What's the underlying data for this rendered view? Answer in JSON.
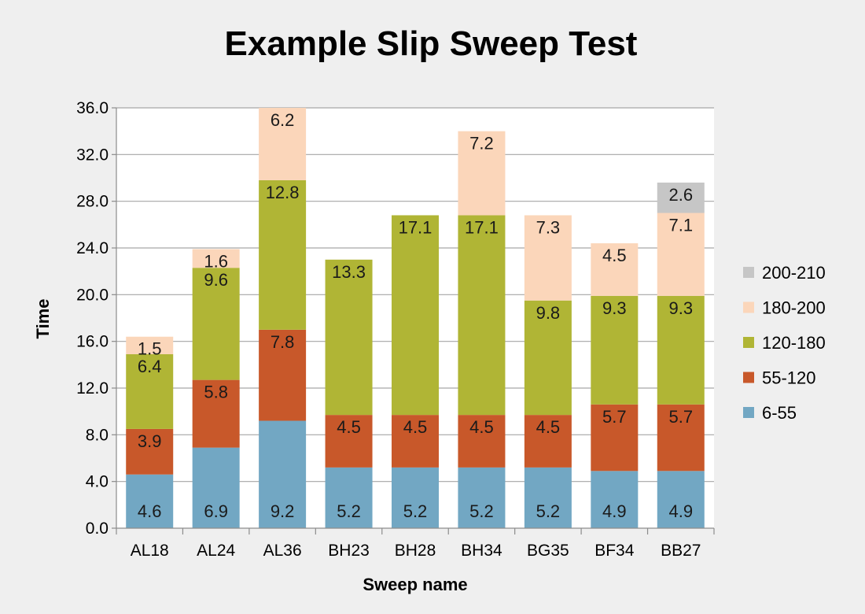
{
  "chart_data": {
    "type": "bar",
    "stacked": true,
    "title": "Example Slip Sweep Test",
    "xlabel": "Sweep name",
    "ylabel": "Time",
    "ylim": [
      0,
      36
    ],
    "y_ticks": [
      "0.0",
      "4.0",
      "8.0",
      "12.0",
      "16.0",
      "20.0",
      "24.0",
      "28.0",
      "32.0",
      "36.0"
    ],
    "grid": true,
    "legend_position": "right",
    "categories": [
      "AL18",
      "AL24",
      "AL36",
      "BH23",
      "BH28",
      "BH34",
      "BG35",
      "BF34",
      "BB27"
    ],
    "series": [
      {
        "name": "6-55",
        "color": "#72a7c3",
        "values": [
          4.6,
          6.9,
          9.2,
          5.2,
          5.2,
          5.2,
          5.2,
          4.9,
          4.9
        ]
      },
      {
        "name": "55-120",
        "color": "#c8582a",
        "values": [
          3.9,
          5.8,
          7.8,
          4.5,
          4.5,
          4.5,
          4.5,
          5.7,
          5.7
        ]
      },
      {
        "name": "120-180",
        "color": "#b0b535",
        "values": [
          6.4,
          9.6,
          12.8,
          13.3,
          17.1,
          17.1,
          9.8,
          9.3,
          9.3
        ]
      },
      {
        "name": "180-200",
        "color": "#fbd6ba",
        "values": [
          1.5,
          1.6,
          6.2,
          0,
          0,
          7.2,
          7.3,
          4.5,
          7.1
        ]
      },
      {
        "name": "200-210",
        "color": "#c6c6c6",
        "values": [
          0,
          0,
          0,
          0,
          0,
          0,
          0,
          0,
          2.6
        ]
      }
    ]
  }
}
